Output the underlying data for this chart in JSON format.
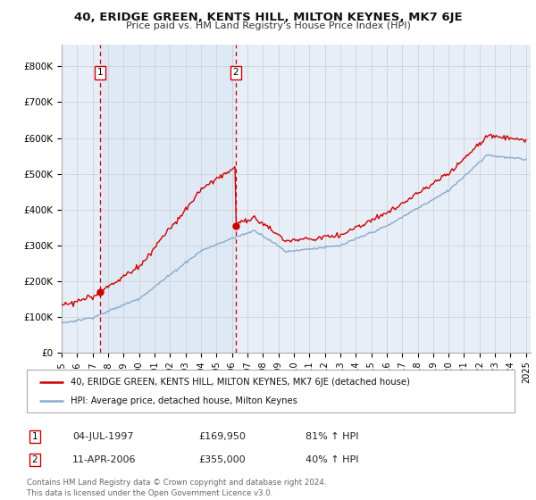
{
  "title": "40, ERIDGE GREEN, KENTS HILL, MILTON KEYNES, MK7 6JE",
  "subtitle": "Price paid vs. HM Land Registry's House Price Index (HPI)",
  "legend_line1": "40, ERIDGE GREEN, KENTS HILL, MILTON KEYNES, MK7 6JE (detached house)",
  "legend_line2": "HPI: Average price, detached house, Milton Keynes",
  "transaction1_date": "04-JUL-1997",
  "transaction1_price": "£169,950",
  "transaction1_hpi": "81% ↑ HPI",
  "transaction2_date": "11-APR-2006",
  "transaction2_price": "£355,000",
  "transaction2_hpi": "40% ↑ HPI",
  "footer": "Contains HM Land Registry data © Crown copyright and database right 2024.\nThis data is licensed under the Open Government Licence v3.0.",
  "red_color": "#cc0000",
  "blue_color": "#88aacc",
  "shade_color": "#dce8f5",
  "background_color": "#e8eef8",
  "grid_color": "#cccccc",
  "ylim": [
    0,
    860000
  ],
  "yticks": [
    0,
    100000,
    200000,
    300000,
    400000,
    500000,
    600000,
    700000,
    800000
  ],
  "ytick_labels": [
    "£0",
    "£100K",
    "£200K",
    "£300K",
    "£400K",
    "£500K",
    "£600K",
    "£700K",
    "£800K"
  ],
  "transaction1_x": 1997.5,
  "transaction1_y": 169950,
  "transaction2_x": 2006.25,
  "transaction2_y": 355000,
  "xmin": 1995,
  "xmax": 2025.3
}
